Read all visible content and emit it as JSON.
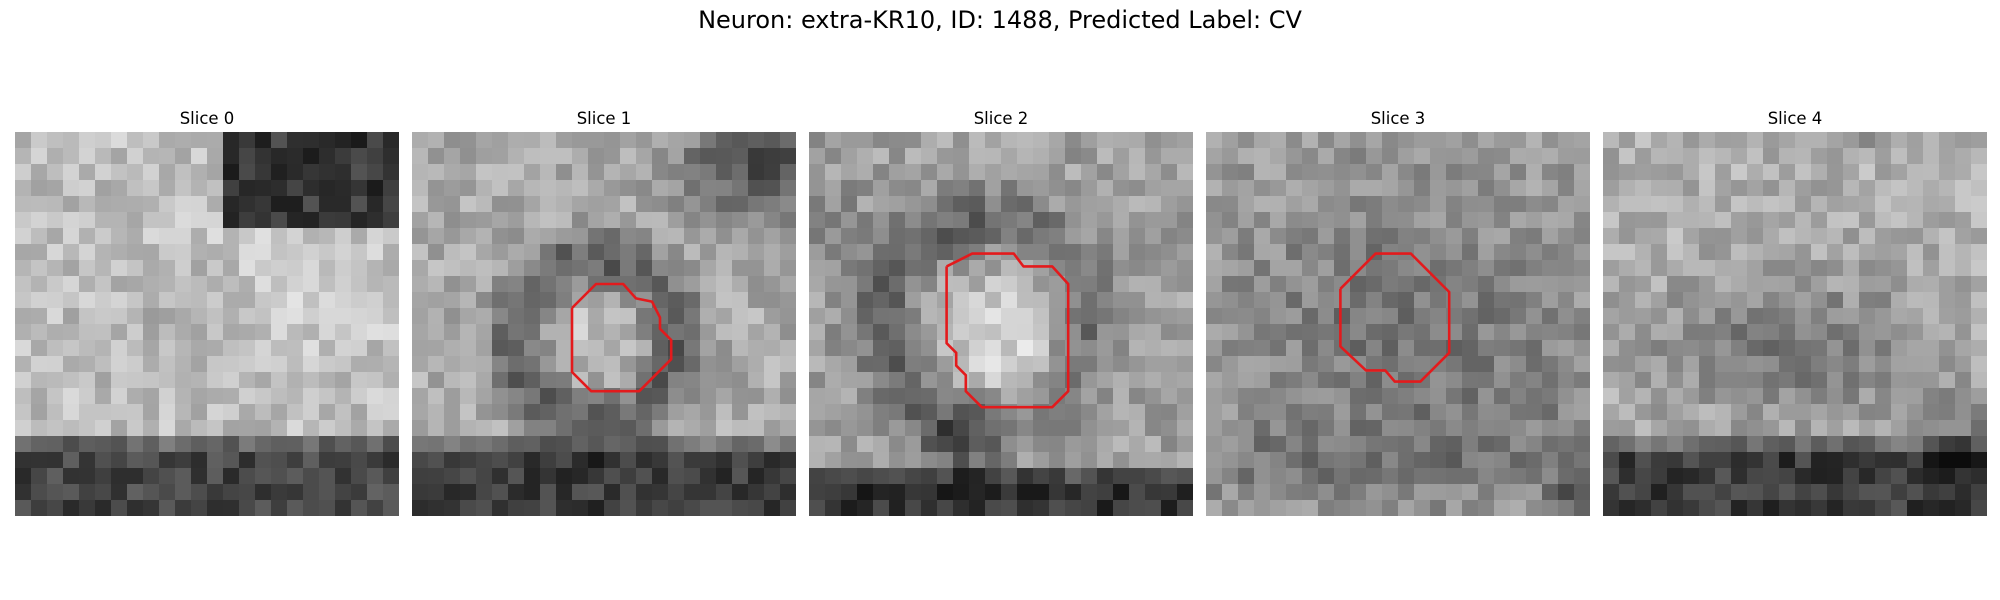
{
  "figure": {
    "title": "Neuron: extra-KR10, ID: 1488, Predicted Label: CV"
  },
  "contour_color": "#e31a1c",
  "colormap": "gray",
  "panels": [
    {
      "title": "Slice 0",
      "has_contour": false
    },
    {
      "title": "Slice 1",
      "has_contour": true
    },
    {
      "title": "Slice 2",
      "has_contour": true
    },
    {
      "title": "Slice 3",
      "has_contour": true
    },
    {
      "title": "Slice 4",
      "has_contour": false
    }
  ]
}
